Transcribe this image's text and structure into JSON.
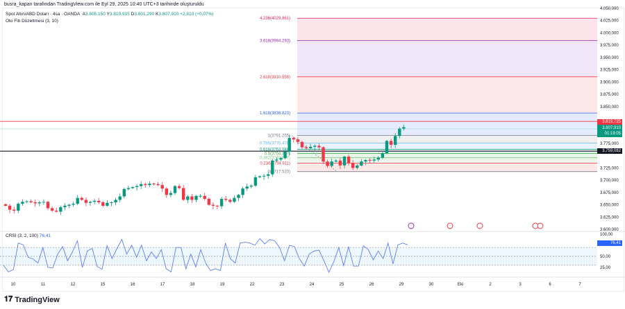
{
  "header": {
    "attribution": "busra_kapan tarafından TradingView.com ile Eyl 29, 2025 10:40 UTC+3 tarihinde oluşturuldu"
  },
  "legend": {
    "symbol": "Spot Altın/ABD Doları · 4sa · OANDA",
    "o_label": "A",
    "o": "3.805,150",
    "h_label": "Y",
    "h": "3.819,915",
    "l_label": "D",
    "l": "3.801,290",
    "c_label": "K",
    "c": "3.807,910",
    "change": "+2,810 (+0,07%)",
    "indicator": "Oto Fib Düzeltmesi (3, 10)"
  },
  "colors": {
    "up": "#089981",
    "down": "#f23645",
    "rsi": "#5b7ff5",
    "accent": "#2962ff"
  },
  "fib_levels": [
    {
      "label": "4.236(4029.861)",
      "price": 4029.861,
      "color": "#e91e63",
      "fill": "#fcdde6"
    },
    {
      "label": "3.618(3984.293)",
      "price": 3984.293,
      "color": "#9c27b0",
      "fill": "#ece0f3"
    },
    {
      "label": "2.618(3910.558)",
      "price": 3910.558,
      "color": "#f23645",
      "fill": "#fde2e2"
    },
    {
      "label": "1.618(3836.823)",
      "price": 3836.823,
      "color": "#2962ff",
      "fill": "#dde6fb"
    },
    {
      "label": "1(3791.255)",
      "price": 3791.255,
      "color": "#787b86",
      "fill": "#ececee"
    },
    {
      "label": "0.786(3775.476)",
      "price": 3775.476,
      "color": "#64b5f6",
      "fill": "#e3f0fb"
    },
    {
      "label": "0.618(3763.088)",
      "price": 3763.088,
      "color": "#089981",
      "fill": "#dcefe9"
    },
    {
      "label": "0.5(3754.387)",
      "price": 3754.387,
      "color": "#4caf50",
      "fill": "#e3f2e4"
    },
    {
      "label": "0.382(3745.687)",
      "price": 3745.687,
      "color": "#81c784",
      "fill": "#e6f3e6"
    },
    {
      "label": "0.236(3734.911)",
      "price": 3734.911,
      "color": "#f23645",
      "fill": "#fde2e2"
    },
    {
      "label": "0(3717.520)",
      "price": 3717.52,
      "color": "#787b86",
      "fill": null
    }
  ],
  "price_axis": [
    "4.050,000",
    "4.025,000",
    "4.000,000",
    "3.975,000",
    "3.950,000",
    "3.925,000",
    "3.900,000",
    "3.875,000",
    "3.850,000",
    "3.775,000",
    "3.725,000",
    "3.700,000",
    "3.675,000",
    "3.650,000",
    "3.625,000",
    "3.600,000"
  ],
  "price_axis_values": [
    4050,
    4025,
    4000,
    3975,
    3950,
    3925,
    3900,
    3875,
    3850,
    3775,
    3725,
    3700,
    3675,
    3650,
    3625,
    3600
  ],
  "price_tags": {
    "high": "3.819,725",
    "high_value": 3819.725,
    "last": "3.807,910",
    "countdown": "01:19:05",
    "last_value": 3807.91,
    "line": "3.759,082",
    "line_value": 3759.082
  },
  "closes": [
    3648,
    3640,
    3638,
    3652,
    3656,
    3657,
    3655,
    3653,
    3655,
    3656,
    3643,
    3638,
    3636,
    3645,
    3648,
    3650,
    3652,
    3664,
    3660,
    3654,
    3656,
    3658,
    3655,
    3648,
    3654,
    3655,
    3660,
    3667,
    3682,
    3684,
    3686,
    3688,
    3692,
    3690,
    3693,
    3692,
    3690,
    3683,
    3670,
    3674,
    3688,
    3684,
    3660,
    3667,
    3660,
    3668,
    3668,
    3662,
    3650,
    3648,
    3647,
    3662,
    3660,
    3656,
    3664,
    3670,
    3683,
    3687,
    3689,
    3706,
    3708,
    3709,
    3712,
    3740,
    3742,
    3745,
    3758,
    3786,
    3783,
    3778,
    3767,
    3765,
    3768,
    3770,
    3767,
    3738,
    3729,
    3738,
    3740,
    3730,
    3748,
    3735,
    3725,
    3730,
    3738,
    3741,
    3740,
    3742,
    3746,
    3755,
    3780,
    3772,
    3790,
    3805,
    3808
  ],
  "rsi": {
    "label": "CRSI (3, 2, 100)",
    "value": "76,41",
    "value_num": 76.41,
    "axis": [
      "100,00",
      "50,00",
      "25,00"
    ],
    "series": [
      30,
      15,
      20,
      80,
      76,
      48,
      44,
      35,
      70,
      25,
      24,
      55,
      72,
      40,
      60,
      85,
      25,
      62,
      68,
      27,
      21,
      74,
      45,
      67,
      88,
      55,
      75,
      48,
      75,
      40,
      60,
      45,
      65,
      22,
      15,
      70,
      70,
      22,
      55,
      26,
      65,
      35,
      18,
      22,
      18,
      80,
      45,
      35,
      80,
      82,
      80,
      75,
      90,
      78,
      88,
      85,
      70,
      40,
      75,
      72,
      45,
      28,
      55,
      62,
      64,
      40,
      14,
      38,
      70,
      29,
      72,
      28,
      28,
      74,
      65,
      42,
      62,
      45,
      80,
      33,
      76,
      80,
      76
    ]
  },
  "time_axis": [
    "10",
    "11",
    "12",
    "15",
    "16",
    "17",
    "18",
    "19",
    "22",
    "23",
    "24",
    "25",
    "26",
    "29",
    "30",
    "Eki",
    "2",
    "3",
    "6",
    "7"
  ],
  "brand": "TradingView"
}
